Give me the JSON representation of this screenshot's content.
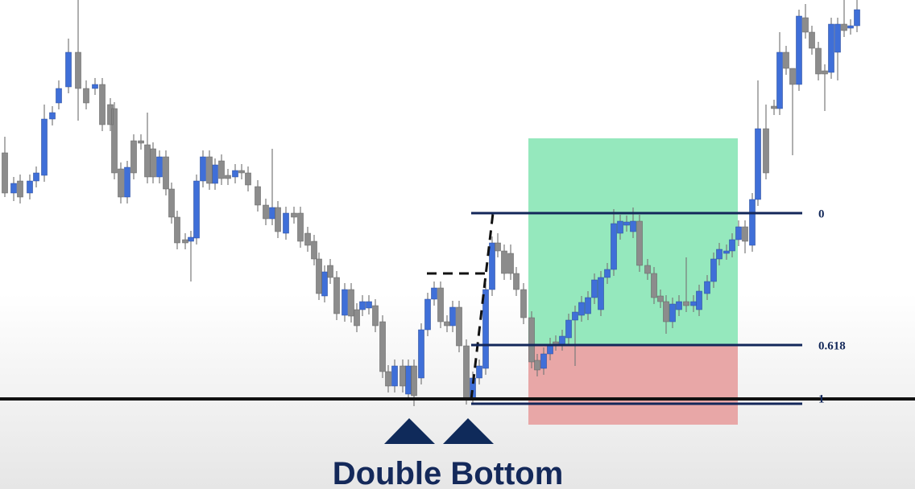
{
  "annotation": {
    "title": "Double Bottom"
  },
  "fib_levels": [
    "0",
    "0.618",
    "1"
  ]
}
